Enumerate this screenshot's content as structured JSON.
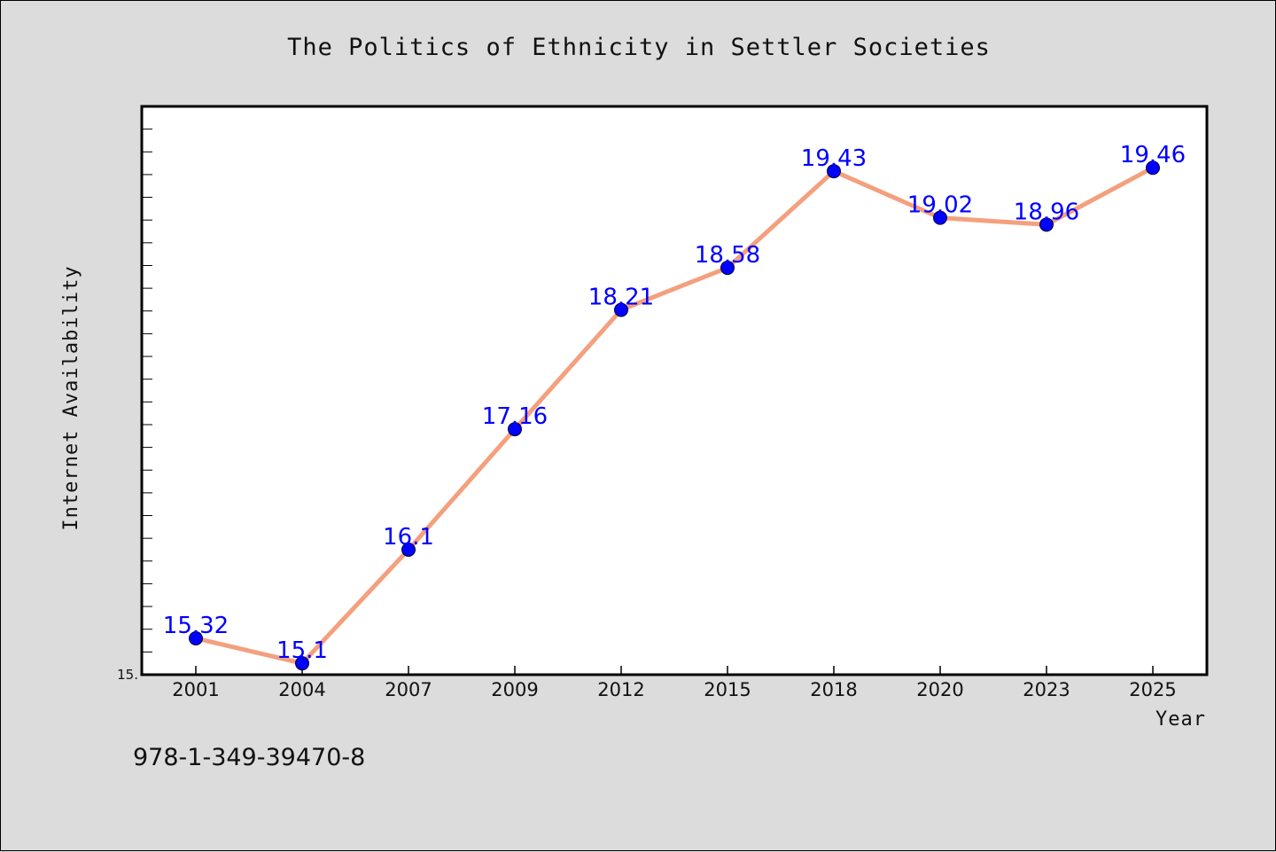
{
  "chart_data": {
    "type": "line",
    "title": "The Politics of Ethnicity in Settler Societies",
    "xlabel": "Year",
    "ylabel": "Internet Availability",
    "categories": [
      "2001",
      "2004",
      "2007",
      "2009",
      "2012",
      "2015",
      "2018",
      "2020",
      "2023",
      "2025"
    ],
    "series": [
      {
        "values": [
          15.32,
          15.1,
          16.1,
          17.16,
          18.21,
          18.58,
          19.43,
          19.02,
          18.96,
          19.46
        ],
        "labels": [
          "15.32",
          "15.1",
          "16.1",
          "17.16",
          "18.21",
          "18.58",
          "19.43",
          "19.02",
          "18.96",
          "19.46"
        ]
      }
    ],
    "ylim": [
      15.0,
      20.0
    ],
    "ytick_labels": [
      "15."
    ],
    "grid": false,
    "line_color": "#f4a07e",
    "marker_color": "#0000ff",
    "data_label_color": "#0000ff"
  },
  "annotations": {
    "isbn": "978-1-349-39470-8"
  }
}
